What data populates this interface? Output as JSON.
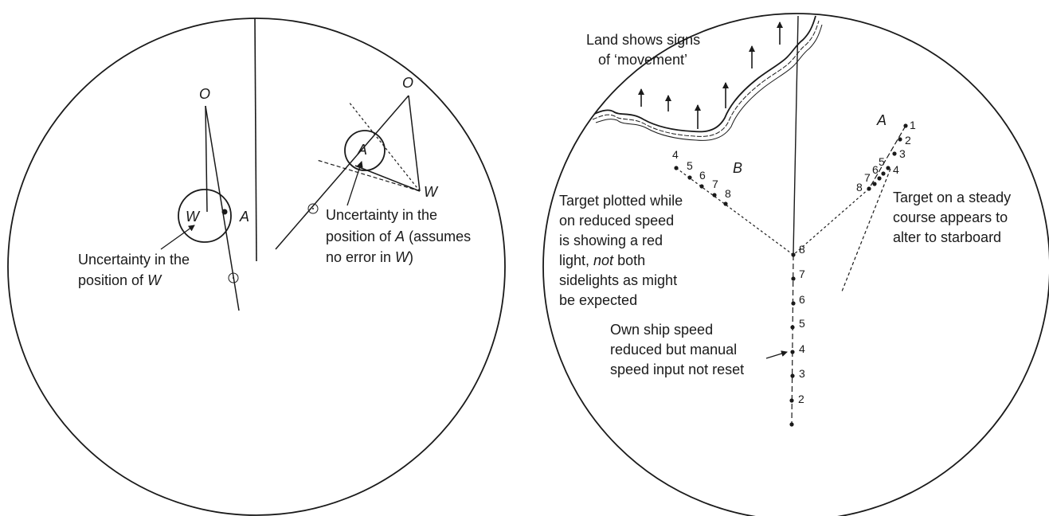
{
  "left_diagram": {
    "O_label": "O",
    "W_label": "W",
    "A_label": "A",
    "uncert_W_line1": "Uncertainty in the",
    "uncert_W_line2": "position of ",
    "uncert_W_var": "W",
    "O2_label": "O",
    "A2_label": "A",
    "W2_label": "W",
    "uncert_A_line1": "Uncertainty in the",
    "uncert_A_line2a": "position of ",
    "uncert_A_var": "A",
    "uncert_A_line2b": " (assumes",
    "uncert_A_line3a": "no error in ",
    "uncert_A_var2": "W",
    "uncert_A_line3b": ")"
  },
  "right_diagram": {
    "land_line1": "Land shows signs",
    "land_line2": "of  ‘movement’",
    "target_A_label": "A",
    "target_B_label": "B",
    "own_ship_numbers": [
      "8",
      "7",
      "6",
      "5",
      "4",
      "3",
      "2"
    ],
    "target_A_numbers": [
      "1",
      "2",
      "3",
      "4",
      "5",
      "6",
      "7",
      "8"
    ],
    "target_B_numbers": [
      "4",
      "5",
      "6",
      "7",
      "8"
    ],
    "redlight_line1": "Target plotted while",
    "redlight_line2": "on reduced speed",
    "redlight_line3": "is showing a red",
    "redlight_line4a": "light, ",
    "redlight_line4_not": "not",
    "redlight_line4b": " both",
    "redlight_line5": "sidelights as might",
    "redlight_line6": "be expected",
    "steady_line1": "Target on a steady",
    "steady_line2": "course appears to",
    "steady_line3": "alter to starboard",
    "ownship_line1": "Own ship speed",
    "ownship_line2": "reduced but manual",
    "ownship_line3": "speed input not reset"
  }
}
